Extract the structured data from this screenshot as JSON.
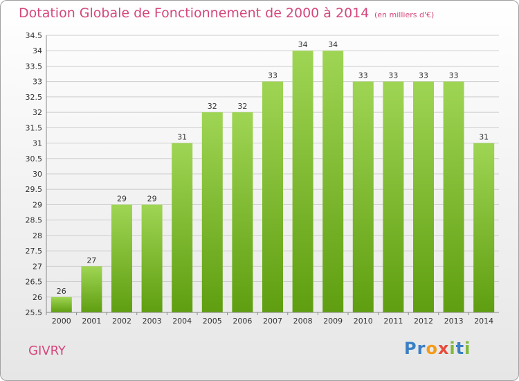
{
  "title": "Dotation Globale de Fonctionnement de 2000 à 2014",
  "subtitle": "(en milliers d'€)",
  "place": "GIVRY",
  "logo": {
    "letters": [
      "P",
      "r",
      "o",
      "x",
      "i",
      "t",
      "i"
    ],
    "colors": [
      "#3a7fc4",
      "#3a7fc4",
      "#f39c1a",
      "#e74c3c",
      "#7fb93a",
      "#3a7fc4",
      "#7fb93a"
    ]
  },
  "colors": {
    "bar_light": "#9fd554",
    "bar_dark": "#5f9e10",
    "accent": "#d4477c"
  },
  "chart_data": {
    "type": "bar",
    "title": "Dotation Globale de Fonctionnement de 2000 à 2014",
    "subtitle": "(en milliers d'€)",
    "xlabel": "",
    "ylabel": "",
    "ylim": [
      25.5,
      34.5
    ],
    "yticks": [
      "25.5",
      "26",
      "26.5",
      "27",
      "27.5",
      "28",
      "28.5",
      "29",
      "29.5",
      "30",
      "30.5",
      "31",
      "31.5",
      "32",
      "32.5",
      "33",
      "33.5",
      "34",
      "34.5"
    ],
    "grid": true,
    "categories": [
      "2000",
      "2001",
      "2002",
      "2003",
      "2004",
      "2005",
      "2006",
      "2007",
      "2008",
      "2009",
      "2010",
      "2011",
      "2012",
      "2013",
      "2014"
    ],
    "values": [
      26,
      27,
      29,
      29,
      31,
      32,
      32,
      33,
      34,
      34,
      33,
      33,
      33,
      33,
      31
    ],
    "labels": [
      "26",
      "27",
      "29",
      "29",
      "31",
      "32",
      "32",
      "33",
      "34",
      "34",
      "33",
      "33",
      "33",
      "33",
      "31"
    ]
  }
}
